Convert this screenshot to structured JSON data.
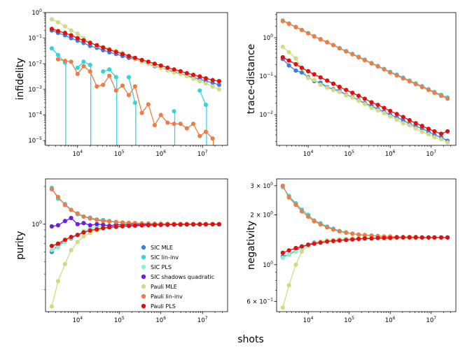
{
  "figure": {
    "shared_xlabel": "shots"
  },
  "series_styles": [
    {
      "name": "SIC MLE",
      "color": "#3a7fe0"
    },
    {
      "name": "SIC lin-inv",
      "color": "#35d3dc"
    },
    {
      "name": "SIC PLS",
      "color": "#8cf0c8"
    },
    {
      "name": "SIC shadows quadratic",
      "color": "#6a1fe0"
    },
    {
      "name": "Pauli MLE",
      "color": "#cfdc85"
    },
    {
      "name": "Pauli lin-inv",
      "color": "#ee7d45"
    },
    {
      "name": "Pauli PLS",
      "color": "#e01010"
    }
  ],
  "legend": {
    "panel": 2,
    "placement": "lower-center"
  },
  "chart_data": [
    {
      "type": "line",
      "ylabel": "infidelity",
      "xscale": "log",
      "yscale": "log",
      "xlim": [
        1700,
        40000000
      ],
      "ylim": [
        6.5e-06,
        1.0
      ],
      "xticks": [
        {
          "v": 10000,
          "base": "10",
          "exp": "4"
        },
        {
          "v": 100000,
          "base": "10",
          "exp": "5"
        },
        {
          "v": 1000000,
          "base": "10",
          "exp": "6"
        },
        {
          "v": 10000000,
          "base": "10",
          "exp": "7"
        }
      ],
      "yticks": [
        {
          "v": 1,
          "base": "10",
          "exp": "0"
        },
        {
          "v": 0.1,
          "base": "10",
          "exp": "−1"
        },
        {
          "v": 0.01,
          "base": "10",
          "exp": "−2"
        },
        {
          "v": 0.001,
          "base": "10",
          "exp": "−3"
        },
        {
          "v": 0.0001,
          "base": "10",
          "exp": "−4"
        },
        {
          "v": 1e-05,
          "base": "10",
          "exp": "−5"
        }
      ],
      "x": [
        2400,
        3400,
        5000,
        7000,
        10000,
        14000,
        20000,
        29000,
        41000,
        58000,
        84000,
        120000,
        170000,
        240000,
        350000,
        500000,
        710000,
        1000000,
        1450000,
        2070000,
        2960000,
        4200000,
        6000000,
        8600000,
        12000000,
        17500000,
        25000000
      ],
      "series": [
        {
          "name": "SIC MLE",
          "values": [
            0.2,
            0.16,
            0.13,
            0.1,
            0.08,
            0.065,
            0.05,
            0.042,
            0.034,
            0.028,
            0.024,
            0.02,
            0.017,
            0.015,
            0.012,
            0.01,
            0.008,
            0.007,
            0.0058,
            0.0048,
            0.0041,
            0.0035,
            0.0029,
            0.0025,
            0.0021,
            0.0018,
            0.0015
          ]
        },
        {
          "name": "SIC lin-inv",
          "values": [
            0.04,
            0.022,
            0.011,
            null,
            0.007,
            0.012,
            0.009,
            null,
            0.005,
            0.006,
            0.003,
            null,
            0.003,
            0.0003,
            null,
            null,
            null,
            null,
            null,
            0.00014,
            null,
            null,
            null,
            0.0009,
            0.00025,
            null,
            null
          ]
        },
        {
          "name": "Pauli MLE",
          "values": [
            0.55,
            0.42,
            0.29,
            0.2,
            0.15,
            0.1,
            0.07,
            0.05,
            0.045,
            0.038,
            0.032,
            0.027,
            0.02,
            0.015,
            0.012,
            0.01,
            0.0085,
            0.007,
            0.0055,
            0.0045,
            0.004,
            0.0033,
            0.0026,
            0.0021,
            0.0017,
            0.0013,
            0.001
          ]
        },
        {
          "name": "Pauli lin-inv",
          "values": [
            null,
            0.015,
            0.013,
            0.012,
            0.004,
            0.008,
            0.005,
            0.0013,
            0.0015,
            0.0034,
            0.0009,
            0.0014,
            0.0006,
            0.0013,
            0.00012,
            0.00026,
            4e-05,
            0.0001,
            5e-05,
            4.5e-05,
            4.5e-05,
            3e-05,
            4.5e-05,
            1.5e-05,
            2.2e-05,
            1.2e-05,
            null
          ]
        },
        {
          "name": "Pauli PLS",
          "values": [
            0.23,
            0.19,
            0.16,
            0.13,
            0.1,
            0.082,
            0.065,
            0.053,
            0.043,
            0.035,
            0.029,
            0.024,
            0.02,
            0.017,
            0.014,
            0.012,
            0.01,
            0.0085,
            0.007,
            0.006,
            0.0051,
            0.0043,
            0.0037,
            0.0032,
            0.0027,
            0.0023,
            0.0021
          ]
        }
      ]
    },
    {
      "type": "line",
      "ylabel": "trace-distance",
      "xscale": "log",
      "yscale": "log",
      "xlim": [
        1700,
        40000000
      ],
      "ylim": [
        0.0016,
        4.5
      ],
      "xticks": [
        {
          "v": 10000,
          "base": "10",
          "exp": "4"
        },
        {
          "v": 100000,
          "base": "10",
          "exp": "5"
        },
        {
          "v": 1000000,
          "base": "10",
          "exp": "6"
        },
        {
          "v": 10000000,
          "base": "10",
          "exp": "7"
        }
      ],
      "yticks": [
        {
          "v": 1,
          "base": "10",
          "exp": "0"
        },
        {
          "v": 0.1,
          "base": "10",
          "exp": "−1"
        },
        {
          "v": 0.01,
          "base": "10",
          "exp": "−2"
        }
      ],
      "x": [
        2400,
        3400,
        5000,
        7000,
        10000,
        14000,
        20000,
        29000,
        41000,
        58000,
        84000,
        120000,
        170000,
        240000,
        350000,
        500000,
        710000,
        1000000,
        1450000,
        2070000,
        2960000,
        4200000,
        6000000,
        8600000,
        12000000,
        17500000,
        25000000
      ],
      "series": [
        {
          "name": "SIC MLE",
          "values": [
            0.28,
            0.19,
            0.14,
            0.125,
            0.095,
            0.075,
            0.068,
            0.052,
            0.046,
            0.042,
            0.033,
            0.029,
            0.024,
            0.02,
            0.017,
            0.014,
            0.012,
            0.01,
            0.0085,
            0.0072,
            0.0058,
            0.005,
            0.0044,
            0.0036,
            0.003,
            0.0026,
            0.0021
          ]
        },
        {
          "name": "SIC lin-inv",
          "values": [
            2.8,
            2.35,
            1.9,
            1.6,
            1.32,
            1.1,
            0.92,
            0.77,
            0.65,
            0.54,
            0.45,
            0.38,
            0.32,
            0.27,
            0.22,
            0.185,
            0.155,
            0.13,
            0.11,
            0.092,
            0.077,
            0.065,
            0.055,
            0.046,
            0.039,
            0.033,
            0.028
          ]
        },
        {
          "name": "Pauli MLE",
          "values": [
            0.58,
            0.42,
            0.29,
            0.16,
            0.09,
            0.08,
            0.06,
            0.05,
            0.044,
            0.039,
            0.032,
            0.028,
            0.023,
            0.019,
            0.015,
            0.013,
            0.011,
            0.009,
            0.0075,
            0.006,
            0.0053,
            0.0044,
            0.0036,
            0.0031,
            0.0026,
            0.0023,
            0.0019
          ]
        },
        {
          "name": "Pauli lin-inv",
          "values": [
            2.7,
            2.3,
            1.88,
            1.58,
            1.3,
            1.08,
            0.9,
            0.76,
            0.64,
            0.53,
            0.44,
            0.37,
            0.31,
            0.26,
            0.215,
            0.18,
            0.15,
            0.125,
            0.105,
            0.088,
            0.074,
            0.062,
            0.052,
            0.044,
            0.037,
            0.031,
            0.026
          ]
        },
        {
          "name": "Pauli PLS",
          "values": [
            0.31,
            0.255,
            0.205,
            0.165,
            0.135,
            0.112,
            0.093,
            0.077,
            0.064,
            0.053,
            0.044,
            0.037,
            0.031,
            0.026,
            0.021,
            0.018,
            0.015,
            0.0125,
            0.0104,
            0.0087,
            0.0072,
            0.006,
            0.0051,
            0.0043,
            0.0037,
            0.0032,
            0.0037
          ]
        }
      ]
    },
    {
      "type": "line",
      "ylabel": "purity",
      "xscale": "log",
      "yscale": "log",
      "xlim": [
        1700,
        40000000
      ],
      "ylim": [
        0.2,
        2.3
      ],
      "xticks": [
        {
          "v": 10000,
          "base": "10",
          "exp": "4"
        },
        {
          "v": 100000,
          "base": "10",
          "exp": "5"
        },
        {
          "v": 1000000,
          "base": "10",
          "exp": "6"
        },
        {
          "v": 10000000,
          "base": "10",
          "exp": "7"
        }
      ],
      "yticks": [
        {
          "v": 1,
          "base": "10",
          "exp": "0"
        }
      ],
      "x": [
        2400,
        3400,
        5000,
        7000,
        10000,
        14000,
        20000,
        29000,
        41000,
        58000,
        84000,
        120000,
        170000,
        240000,
        350000,
        500000,
        710000,
        1000000,
        1450000,
        2070000,
        2960000,
        4200000,
        6000000,
        8600000,
        12000000,
        17500000,
        25000000
      ],
      "series": [
        {
          "name": "SIC MLE",
          "values": [
            0.6,
            0.68,
            0.73,
            0.77,
            0.82,
            0.86,
            0.89,
            0.91,
            0.93,
            0.945,
            0.95,
            0.96,
            0.965,
            0.97,
            0.975,
            0.98,
            0.983,
            0.985,
            0.987,
            0.99,
            0.99,
            0.992,
            0.993,
            0.994,
            0.995,
            0.996,
            0.997
          ]
        },
        {
          "name": "SIC lin-inv",
          "values": [
            1.95,
            1.6,
            1.45,
            1.3,
            1.2,
            1.15,
            1.13,
            1.09,
            1.08,
            1.06,
            1.04,
            1.03,
            1.02,
            1.015,
            1.01,
            1.01,
            1.005,
            1.005,
            1.004,
            1.003,
            1.003,
            1.002,
            1.002,
            1.002,
            1.001,
            1.001,
            1.001
          ]
        },
        {
          "name": "SIC PLS",
          "values": [
            0.62,
            0.65,
            0.72,
            0.78,
            0.82,
            0.88,
            0.92,
            0.95,
            0.96,
            0.97,
            0.98,
            0.983,
            0.986,
            0.988,
            0.99,
            0.992,
            0.993,
            0.995,
            0.996,
            0.996,
            0.997,
            0.997,
            0.998,
            0.998,
            0.998,
            0.999,
            0.999
          ]
        },
        {
          "name": "SIC shadows quadratic",
          "values": [
            0.96,
            0.98,
            1.06,
            1.12,
            1.0,
            1.02,
            0.98,
            1.0,
            0.99,
            0.97,
            0.99,
            0.99,
            1.0,
            1.0,
            0.99,
            1.0,
            1.0,
            1.0,
            1.0,
            1.0,
            1.0,
            1.0,
            1.0,
            1.0,
            1.0,
            1.0,
            1.0
          ]
        },
        {
          "name": "Pauli MLE",
          "values": [
            0.22,
            0.35,
            0.48,
            0.62,
            0.72,
            0.8,
            0.85,
            0.89,
            0.92,
            0.94,
            0.955,
            0.965,
            0.97,
            0.975,
            0.98,
            0.984,
            0.987,
            0.989,
            0.991,
            0.993,
            0.994,
            0.995,
            0.996,
            0.997,
            0.997,
            0.998,
            0.998
          ]
        },
        {
          "name": "Pauli lin-inv",
          "values": [
            1.9,
            1.65,
            1.42,
            1.3,
            1.22,
            1.15,
            1.11,
            1.08,
            1.06,
            1.05,
            1.04,
            1.03,
            1.025,
            1.02,
            1.015,
            1.012,
            1.01,
            1.008,
            1.006,
            1.005,
            1.004,
            1.003,
            1.003,
            1.002,
            1.002,
            1.001,
            1.001
          ]
        },
        {
          "name": "Pauli PLS",
          "values": [
            0.67,
            0.7,
            0.75,
            0.79,
            0.82,
            0.86,
            0.89,
            0.91,
            0.93,
            0.945,
            0.955,
            0.965,
            0.97,
            0.975,
            0.98,
            0.984,
            0.987,
            0.989,
            0.991,
            0.993,
            0.994,
            0.995,
            0.996,
            0.997,
            0.997,
            0.998,
            0.998
          ]
        }
      ]
    },
    {
      "type": "line",
      "ylabel": "negativity",
      "xscale": "log",
      "yscale": "log",
      "xlim": [
        1700,
        40000000
      ],
      "ylim": [
        0.52,
        3.3
      ],
      "xticks": [
        {
          "v": 10000,
          "base": "10",
          "exp": "4"
        },
        {
          "v": 100000,
          "base": "10",
          "exp": "5"
        },
        {
          "v": 1000000,
          "base": "10",
          "exp": "6"
        },
        {
          "v": 10000000,
          "base": "10",
          "exp": "7"
        }
      ],
      "yticks": [
        {
          "v": 3,
          "base": "3 × 10",
          "exp": "0"
        },
        {
          "v": 2,
          "base": "2 × 10",
          "exp": "0"
        },
        {
          "v": 1,
          "base": "10",
          "exp": "0"
        },
        {
          "v": 0.6,
          "base": "6 × 10",
          "exp": "−1"
        }
      ],
      "x": [
        2400,
        3400,
        5000,
        7000,
        10000,
        14000,
        20000,
        29000,
        41000,
        58000,
        84000,
        120000,
        170000,
        240000,
        350000,
        500000,
        710000,
        1000000,
        1450000,
        2070000,
        2960000,
        4200000,
        6000000,
        8600000,
        12000000,
        17500000,
        25000000
      ],
      "series": [
        {
          "name": "SIC MLE",
          "values": [
            1.12,
            1.15,
            1.22,
            1.28,
            1.32,
            1.36,
            1.38,
            1.4,
            1.41,
            1.42,
            1.43,
            1.44,
            1.44,
            1.45,
            1.45,
            1.45,
            1.46,
            1.46,
            1.46,
            1.46,
            1.46,
            1.46,
            1.46,
            1.46,
            1.46,
            1.46,
            1.46
          ]
        },
        {
          "name": "SIC lin-inv",
          "values": [
            2.95,
            2.6,
            2.35,
            2.15,
            2.0,
            1.85,
            1.78,
            1.7,
            1.65,
            1.6,
            1.57,
            1.54,
            1.52,
            1.51,
            1.5,
            1.49,
            1.48,
            1.48,
            1.47,
            1.47,
            1.47,
            1.47,
            1.46,
            1.46,
            1.46,
            1.46,
            1.46
          ]
        },
        {
          "name": "SIC PLS",
          "values": [
            1.1,
            1.15,
            1.2,
            1.26,
            1.3,
            1.34,
            1.37,
            1.39,
            1.4,
            1.41,
            1.42,
            1.43,
            1.44,
            1.44,
            1.45,
            1.45,
            1.45,
            1.46,
            1.46,
            1.46,
            1.46,
            1.46,
            1.46,
            1.46,
            1.46,
            1.46,
            1.46
          ]
        },
        {
          "name": "Pauli MLE",
          "values": [
            0.55,
            0.75,
            1.0,
            1.2,
            1.3,
            1.35,
            1.38,
            1.4,
            1.41,
            1.42,
            1.43,
            1.44,
            1.44,
            1.45,
            1.45,
            1.45,
            1.46,
            1.46,
            1.46,
            1.46,
            1.46,
            1.46,
            1.46,
            1.46,
            1.46,
            1.46,
            1.46
          ]
        },
        {
          "name": "Pauli lin-inv",
          "values": [
            3.0,
            2.55,
            2.3,
            2.1,
            1.95,
            1.83,
            1.75,
            1.68,
            1.63,
            1.59,
            1.56,
            1.54,
            1.52,
            1.51,
            1.5,
            1.49,
            1.48,
            1.48,
            1.47,
            1.47,
            1.47,
            1.47,
            1.46,
            1.46,
            1.46,
            1.46,
            1.46
          ]
        },
        {
          "name": "Pauli PLS",
          "values": [
            1.18,
            1.22,
            1.26,
            1.29,
            1.32,
            1.34,
            1.36,
            1.38,
            1.39,
            1.4,
            1.41,
            1.42,
            1.43,
            1.44,
            1.44,
            1.45,
            1.45,
            1.45,
            1.46,
            1.46,
            1.46,
            1.46,
            1.46,
            1.46,
            1.46,
            1.46,
            1.46
          ]
        }
      ]
    }
  ]
}
